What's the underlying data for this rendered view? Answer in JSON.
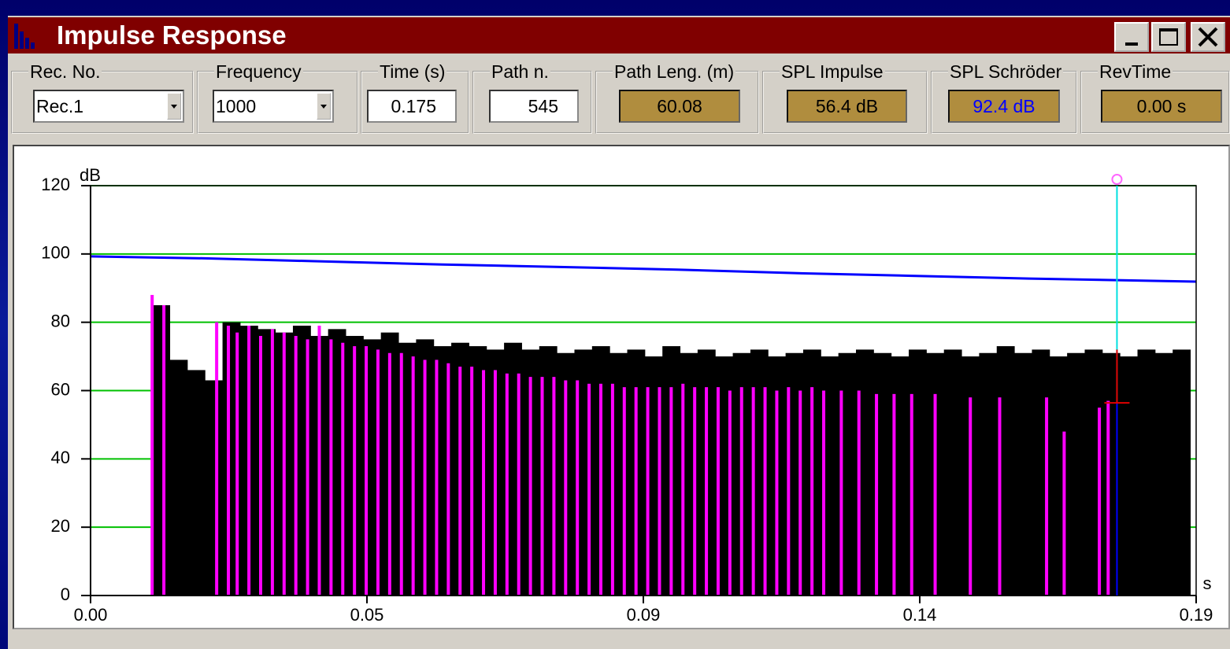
{
  "window": {
    "title": "Impulse Response"
  },
  "fields": [
    {
      "label": "Rec. No.",
      "value": "Rec.1",
      "kind": "combo"
    },
    {
      "label": "Frequency",
      "value": "1000",
      "kind": "combo"
    },
    {
      "label": "Time (s)",
      "value": "0.175",
      "kind": "input"
    },
    {
      "label": "Path n.",
      "value": "545",
      "kind": "input"
    },
    {
      "label": "Path Leng. (m)",
      "value": "60.08",
      "kind": "readout"
    },
    {
      "label": "SPL Impulse",
      "value": "56.4 dB",
      "kind": "readout"
    },
    {
      "label": "SPL Schröder",
      "value": "92.4 dB",
      "kind": "readout",
      "color": "#0000ff"
    },
    {
      "label": "RevTime",
      "value": "0.00 s",
      "kind": "readout"
    }
  ],
  "chart_data": {
    "type": "histogram",
    "ylabel": "dB",
    "xlabel": "s",
    "ylim": [
      0,
      120
    ],
    "yticks": [
      0,
      20,
      40,
      60,
      80,
      100,
      120
    ],
    "xlim": [
      0,
      0.1885
    ],
    "xticks": [
      {
        "value": 0,
        "label": "0.00"
      },
      {
        "value": 0.047125,
        "label": "0.05"
      },
      {
        "value": 0.09425,
        "label": "0.09"
      },
      {
        "value": 0.141375,
        "label": "0.14"
      },
      {
        "value": 0.1885,
        "label": "0.19"
      }
    ],
    "grid": true,
    "grid_color": "#00c000",
    "bins": [
      0.0105,
      0.0135,
      0.0165,
      0.0195,
      0.0225,
      0.0255,
      0.0285,
      0.0315,
      0.0345,
      0.0375,
      0.0405,
      0.0435,
      0.0465,
      0.0495,
      0.0525,
      0.0555,
      0.0585,
      0.0615,
      0.0645,
      0.0675,
      0.0705,
      0.0735,
      0.0765,
      0.0795,
      0.0825,
      0.0855,
      0.0885,
      0.0915,
      0.0945,
      0.0975,
      0.1005,
      0.1035,
      0.1065,
      0.1095,
      0.1125,
      0.1155,
      0.1185,
      0.1215,
      0.1245,
      0.1275,
      0.1305,
      0.1335,
      0.1365,
      0.1395,
      0.1425,
      0.1455,
      0.1485,
      0.1515,
      0.1545,
      0.1575,
      0.1605,
      0.1635,
      0.1665,
      0.1695,
      0.1725,
      0.1755,
      0.1785,
      0.1815,
      0.1845,
      0.1875
    ],
    "values": [
      85,
      69,
      66,
      63,
      80,
      79,
      78,
      77,
      79,
      76,
      78,
      76,
      75,
      77,
      74,
      75,
      73,
      74,
      73,
      72,
      74,
      72,
      73,
      71,
      72,
      73,
      71,
      72,
      70,
      73,
      71,
      72,
      70,
      71,
      72,
      70,
      71,
      72,
      70,
      71,
      72,
      71,
      70,
      72,
      71,
      72,
      70,
      71,
      73,
      71,
      72,
      70,
      71,
      72,
      71,
      70,
      72,
      71,
      72
    ],
    "color": "#000000",
    "impulses": {
      "color": "#ff00ff",
      "x": [
        0.0105,
        0.0125,
        0.0215,
        0.0235,
        0.025,
        0.027,
        0.029,
        0.031,
        0.033,
        0.035,
        0.037,
        0.039,
        0.041,
        0.043,
        0.045,
        0.047,
        0.049,
        0.051,
        0.053,
        0.055,
        0.057,
        0.059,
        0.061,
        0.063,
        0.065,
        0.067,
        0.069,
        0.071,
        0.073,
        0.075,
        0.077,
        0.079,
        0.081,
        0.083,
        0.085,
        0.087,
        0.089,
        0.091,
        0.093,
        0.095,
        0.097,
        0.099,
        0.101,
        0.103,
        0.105,
        0.107,
        0.109,
        0.111,
        0.113,
        0.115,
        0.117,
        0.119,
        0.121,
        0.123,
        0.125,
        0.128,
        0.131,
        0.134,
        0.137,
        0.14,
        0.144,
        0.15,
        0.155,
        0.163,
        0.166,
        0.172,
        0.1735
      ],
      "values": [
        88,
        85,
        80,
        79,
        77,
        79,
        76,
        78,
        77,
        76,
        75,
        79,
        75,
        74,
        73,
        73,
        72,
        71,
        71,
        70,
        69,
        69,
        68,
        67,
        67,
        66,
        66,
        65,
        65,
        64,
        64,
        64,
        63,
        63,
        62,
        62,
        62,
        61,
        61,
        61,
        61,
        61,
        62,
        61,
        61,
        61,
        60,
        61,
        61,
        61,
        60,
        61,
        60,
        61,
        60,
        60,
        60,
        59,
        59,
        59,
        59,
        58,
        58,
        58,
        48,
        55,
        57
      ]
    },
    "decay": {
      "color": "#0000ff",
      "x": [
        0,
        0.02,
        0.04,
        0.06,
        0.08,
        0.1,
        0.12,
        0.14,
        0.16,
        0.1885
      ],
      "values": [
        99.3,
        98.7,
        97.8,
        96.9,
        96.2,
        95.4,
        94.4,
        93.6,
        92.8,
        91.9
      ]
    },
    "cursor": {
      "x": 0.175,
      "level": 56.4,
      "peak": 72
    }
  }
}
